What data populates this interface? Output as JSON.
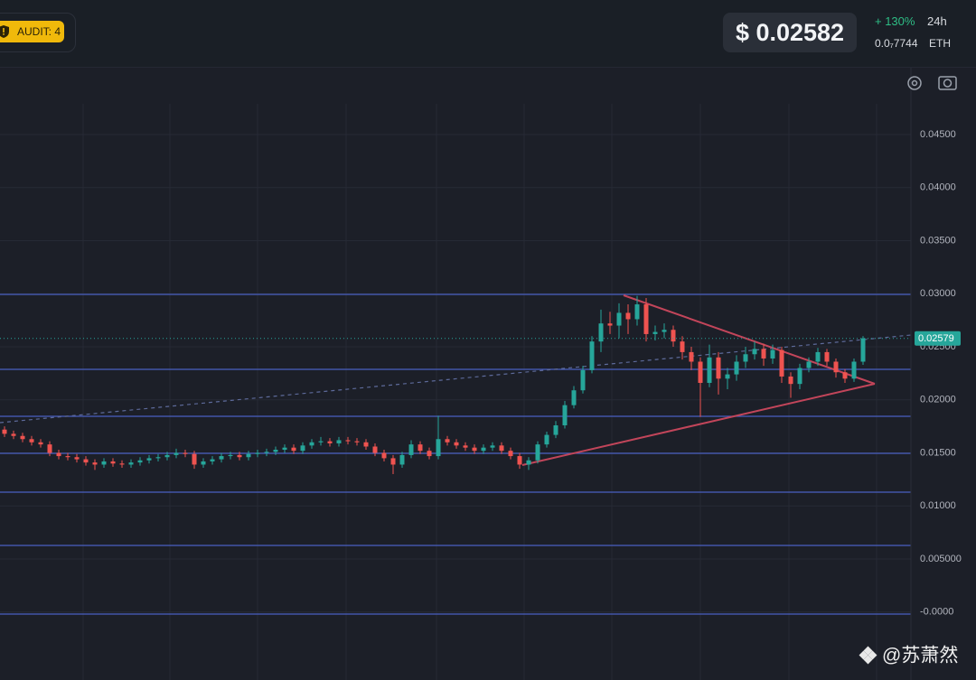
{
  "header": {
    "audit": "AUDIT: 4",
    "price": "$ 0.02582",
    "change": "+ 130%",
    "period": "24h",
    "eth_price": "0.0₇7744",
    "eth_unit": "ETH"
  },
  "watermark": "@苏萧然",
  "chart_data": {
    "type": "candlestick",
    "open": [
      0.0172,
      0.0168,
      0.0166,
      0.0163,
      0.016,
      0.0158,
      0.015,
      0.0147,
      0.0146,
      0.0144,
      0.0141,
      0.0139,
      0.0142,
      0.014,
      0.0139,
      0.0141,
      0.0143,
      0.0145,
      0.0146,
      0.0148,
      0.015,
      0.0149,
      0.0139,
      0.0142,
      0.0144,
      0.0147,
      0.0148,
      0.0146,
      0.0149,
      0.015,
      0.0151,
      0.0153,
      0.0155,
      0.0152,
      0.0157,
      0.016,
      0.0161,
      0.0159,
      0.0162,
      0.0161,
      0.016,
      0.0156,
      0.015,
      0.0145,
      0.0139,
      0.0148,
      0.0158,
      0.0152,
      0.0147,
      0.0163,
      0.016,
      0.0157,
      0.0155,
      0.0152,
      0.0155,
      0.0157,
      0.0152,
      0.0147,
      0.0139,
      0.0143,
      0.0158,
      0.0167,
      0.0176,
      0.0195,
      0.0209,
      0.0228,
      0.0255,
      0.0272,
      0.027,
      0.0282,
      0.0276,
      0.029,
      0.0262,
      0.0264,
      0.0266,
      0.0255,
      0.0245,
      0.0236,
      0.0216,
      0.024,
      0.022,
      0.0224,
      0.0236,
      0.0243,
      0.0248,
      0.0239,
      0.0247,
      0.0222,
      0.0215,
      0.023,
      0.0236,
      0.0245,
      0.0236,
      0.0226,
      0.022,
      0.0236
    ],
    "high": [
      0.0175,
      0.0171,
      0.0169,
      0.0166,
      0.0163,
      0.0161,
      0.0153,
      0.015,
      0.0149,
      0.0147,
      0.0144,
      0.0145,
      0.0145,
      0.0143,
      0.0144,
      0.0146,
      0.0148,
      0.0149,
      0.0151,
      0.0154,
      0.0153,
      0.0152,
      0.0145,
      0.0147,
      0.015,
      0.0151,
      0.0151,
      0.0152,
      0.0153,
      0.0154,
      0.0156,
      0.0158,
      0.0158,
      0.016,
      0.0163,
      0.0165,
      0.0164,
      0.0165,
      0.0165,
      0.0164,
      0.0163,
      0.0159,
      0.0153,
      0.0148,
      0.0151,
      0.0162,
      0.0161,
      0.0155,
      0.0185,
      0.0166,
      0.0163,
      0.016,
      0.0158,
      0.0158,
      0.016,
      0.016,
      0.0155,
      0.015,
      0.0146,
      0.0161,
      0.017,
      0.018,
      0.0199,
      0.0213,
      0.0232,
      0.026,
      0.0285,
      0.0283,
      0.0291,
      0.029,
      0.0298,
      0.0296,
      0.027,
      0.0272,
      0.027,
      0.026,
      0.025,
      0.024,
      0.0252,
      0.0245,
      0.023,
      0.0242,
      0.025,
      0.0255,
      0.0253,
      0.0252,
      0.025,
      0.0226,
      0.0234,
      0.024,
      0.0249,
      0.0248,
      0.0239,
      0.0229,
      0.0239,
      0.026
    ],
    "low": [
      0.0165,
      0.0163,
      0.016,
      0.0157,
      0.0155,
      0.0147,
      0.0144,
      0.0143,
      0.0141,
      0.0138,
      0.0134,
      0.0136,
      0.0137,
      0.0136,
      0.0136,
      0.0138,
      0.014,
      0.0142,
      0.0143,
      0.0145,
      0.0146,
      0.0135,
      0.0136,
      0.0139,
      0.0141,
      0.0144,
      0.0143,
      0.0143,
      0.0146,
      0.0147,
      0.0148,
      0.015,
      0.0149,
      0.0149,
      0.0154,
      0.0157,
      0.0156,
      0.0156,
      0.0158,
      0.0157,
      0.0153,
      0.0147,
      0.0142,
      0.013,
      0.0136,
      0.0145,
      0.0149,
      0.0144,
      0.0144,
      0.0157,
      0.0154,
      0.0152,
      0.0149,
      0.0149,
      0.0152,
      0.0149,
      0.0144,
      0.0135,
      0.0134,
      0.014,
      0.0155,
      0.0164,
      0.0173,
      0.0192,
      0.0206,
      0.0225,
      0.0245,
      0.0262,
      0.0258,
      0.0262,
      0.027,
      0.0255,
      0.0256,
      0.0258,
      0.025,
      0.0238,
      0.0228,
      0.0184,
      0.0212,
      0.0205,
      0.021,
      0.0218,
      0.023,
      0.0238,
      0.0232,
      0.0234,
      0.0216,
      0.0202,
      0.021,
      0.0226,
      0.0232,
      0.0232,
      0.0221,
      0.0216,
      0.0217,
      0.0233
    ],
    "close": [
      0.0168,
      0.0166,
      0.0163,
      0.016,
      0.0158,
      0.015,
      0.0147,
      0.0146,
      0.0144,
      0.0141,
      0.0139,
      0.0142,
      0.014,
      0.0139,
      0.0141,
      0.0143,
      0.0145,
      0.0146,
      0.0148,
      0.015,
      0.0149,
      0.0139,
      0.0142,
      0.0144,
      0.0147,
      0.0148,
      0.0146,
      0.0149,
      0.015,
      0.0151,
      0.0153,
      0.0155,
      0.0152,
      0.0157,
      0.016,
      0.0161,
      0.0159,
      0.0162,
      0.0161,
      0.016,
      0.0156,
      0.015,
      0.0145,
      0.0139,
      0.0148,
      0.0158,
      0.0152,
      0.0147,
      0.0163,
      0.016,
      0.0157,
      0.0155,
      0.0152,
      0.0155,
      0.0157,
      0.0152,
      0.0147,
      0.0139,
      0.0143,
      0.0158,
      0.0167,
      0.0176,
      0.0195,
      0.0209,
      0.0228,
      0.0255,
      0.0272,
      0.027,
      0.0282,
      0.0276,
      0.029,
      0.0262,
      0.0264,
      0.0266,
      0.0255,
      0.0245,
      0.0236,
      0.0216,
      0.024,
      0.022,
      0.0224,
      0.0236,
      0.0243,
      0.0248,
      0.0239,
      0.0247,
      0.0222,
      0.0215,
      0.023,
      0.0236,
      0.0245,
      0.0236,
      0.0226,
      0.022,
      0.0236,
      0.0258
    ],
    "up_color": "#26a69a",
    "down_color": "#ef5350",
    "last_price": 0.02579,
    "last_price_color": "#26a69a",
    "ylim": [
      -0.0064,
      0.0513
    ],
    "yticks": [
      {
        "value": 0.045,
        "label": "0.04500"
      },
      {
        "value": 0.04,
        "label": "0.04000"
      },
      {
        "value": 0.035,
        "label": "0.03500"
      },
      {
        "value": 0.03,
        "label": "0.03000"
      },
      {
        "value": 0.025,
        "label": "0.02500"
      },
      {
        "value": 0.02,
        "label": "0.02000"
      },
      {
        "value": 0.015,
        "label": "0.01500"
      },
      {
        "value": 0.01,
        "label": "0.01000"
      },
      {
        "value": 0.005,
        "label": "0.005000"
      },
      {
        "value": 0,
        "label": "-0.0000"
      }
    ],
    "grid": true
  }
}
